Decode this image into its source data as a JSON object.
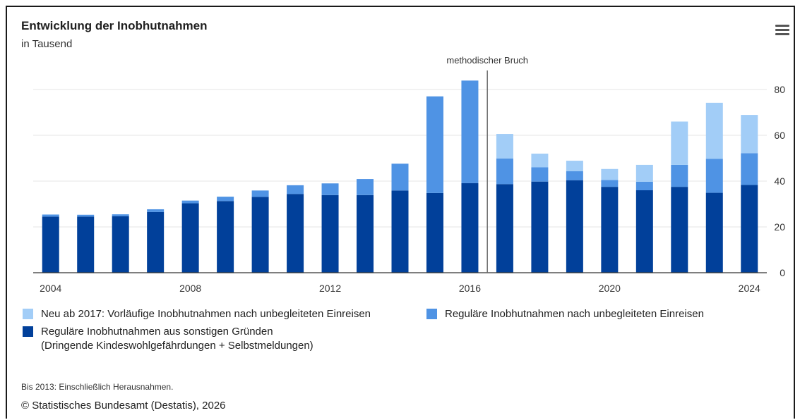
{
  "title": "Entwicklung der Inobhutnahmen",
  "subtitle": "in Tausend",
  "menu_icon": "hamburger-menu-icon",
  "annotation": {
    "label": "methodischer Bruch",
    "year": 2016.5
  },
  "legend": [
    {
      "key": "vorlaeufig",
      "label": "Neu ab 2017: Vorläufige Inobhutnahmen nach unbegleiteten Einreisen",
      "color": "#a2cdf7"
    },
    {
      "key": "regulaer_unbegleitet",
      "label": "Reguläre Inobhutnahmen nach unbegleiteten Einreisen",
      "color": "#4f93e4"
    },
    {
      "key": "regulaer_sonstige",
      "label": "Reguläre Inobhutnahmen aus sonstigen Gründen",
      "label2": "(Dringende Kindeswohlgefährdungen + Selbstmeldungen)",
      "color": "#01409a"
    }
  ],
  "note": "Bis 2013: Einschließlich Herausnahmen.",
  "credit": "© Statistisches Bundesamt (Destatis), 2026",
  "chart_data": {
    "type": "bar",
    "stacked": true,
    "title": "Entwicklung der Inobhutnahmen",
    "subtitle": "in Tausend",
    "categories": [
      2004,
      2005,
      2006,
      2007,
      2008,
      2009,
      2010,
      2011,
      2012,
      2013,
      2014,
      2015,
      2016,
      2017,
      2018,
      2019,
      2020,
      2021,
      2022,
      2023,
      2024
    ],
    "x_tick_labels": [
      "2004",
      "2008",
      "2012",
      "2016",
      "2020",
      "2024"
    ],
    "y_ticks": [
      0,
      20,
      40,
      60,
      80
    ],
    "ylim": [
      0,
      80
    ],
    "y_axis_position": "right",
    "grid": true,
    "legend_position": "bottom",
    "series": [
      {
        "name": "Reguläre Inobhutnahmen aus sonstigen Gründen (Dringende Kindeswohlgefährdungen + Selbstmeldungen)",
        "color": "#01409a",
        "values": [
          24.5,
          24.5,
          24.7,
          26.5,
          30.3,
          31.3,
          33.1,
          34.4,
          33.9,
          33.9,
          35.9,
          34.8,
          39.1,
          38.7,
          39.8,
          40.4,
          37.5,
          36.0,
          37.5,
          34.9,
          38.3
        ]
      },
      {
        "name": "Reguläre Inobhutnahmen nach unbegleiteten Einreisen",
        "color": "#4f93e4",
        "values": [
          0.9,
          0.8,
          0.8,
          1.2,
          1.2,
          1.9,
          2.8,
          3.8,
          5.1,
          7.0,
          11.7,
          42.2,
          44.8,
          11.2,
          6.2,
          3.9,
          3.0,
          3.7,
          9.6,
          14.8,
          13.9
        ]
      },
      {
        "name": "Neu ab 2017: Vorläufige Inobhutnahmen nach unbegleiteten Einreisen",
        "color": "#a2cdf7",
        "values": [
          0,
          0,
          0,
          0,
          0,
          0,
          0,
          0,
          0,
          0,
          0,
          0,
          0,
          10.7,
          6.0,
          4.6,
          4.8,
          7.4,
          18.9,
          24.5,
          16.7
        ]
      }
    ]
  }
}
